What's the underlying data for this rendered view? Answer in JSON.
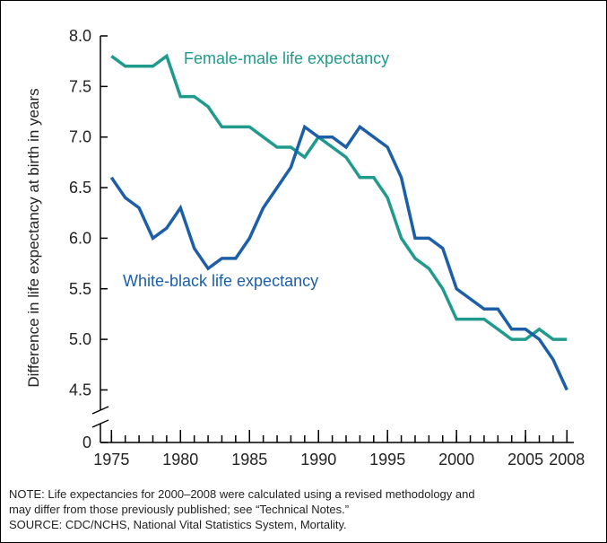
{
  "chart_data": {
    "type": "line",
    "y_label": "Difference in life expectancy at birth in years",
    "x": [
      1975,
      1976,
      1977,
      1978,
      1979,
      1980,
      1981,
      1982,
      1983,
      1984,
      1985,
      1986,
      1987,
      1988,
      1989,
      1990,
      1991,
      1992,
      1993,
      1994,
      1995,
      1996,
      1997,
      1998,
      1999,
      2000,
      2001,
      2002,
      2003,
      2004,
      2005,
      2006,
      2007,
      2008
    ],
    "series": [
      {
        "name": "Female-male life expectancy",
        "color": "#1f9a8c",
        "values": [
          7.8,
          7.7,
          7.7,
          7.7,
          7.8,
          7.4,
          7.4,
          7.3,
          7.1,
          7.1,
          7.1,
          7.0,
          6.9,
          6.9,
          6.8,
          7.0,
          6.9,
          6.8,
          6.6,
          6.6,
          6.4,
          6.0,
          5.8,
          5.7,
          5.5,
          5.2,
          5.2,
          5.2,
          5.1,
          5.0,
          5.0,
          5.1,
          5.0,
          5.0
        ]
      },
      {
        "name": "White-black life expectancy",
        "color": "#1c5ea8",
        "values": [
          6.6,
          6.4,
          6.3,
          6.0,
          6.1,
          6.3,
          5.9,
          5.7,
          5.8,
          5.8,
          6.0,
          6.3,
          6.5,
          6.7,
          7.1,
          7.0,
          7.0,
          6.9,
          7.1,
          7.0,
          6.9,
          6.6,
          6.0,
          6.0,
          5.9,
          5.5,
          5.4,
          5.3,
          5.3,
          5.1,
          5.1,
          5.0,
          4.8,
          4.5
        ]
      }
    ],
    "xlim": [
      1974.2,
      2008.5
    ],
    "xticks": [
      1975,
      1980,
      1985,
      1990,
      1995,
      2000,
      2005,
      2008
    ],
    "ylim": [
      0,
      8.0
    ],
    "axis_break": [
      0,
      4.3
    ],
    "yticks": [
      0,
      {
        "value": 4.5,
        "label": "4.5"
      },
      {
        "value": 5.0,
        "label": "5.0"
      },
      {
        "value": 5.5,
        "label": "5.5"
      },
      {
        "value": 6.0,
        "label": "6.0"
      },
      {
        "value": 6.5,
        "label": "6.5"
      },
      {
        "value": 7.0,
        "label": "7.0"
      },
      {
        "value": 7.5,
        "label": "7.5"
      },
      {
        "value": 8.0,
        "label": "8.0"
      }
    ],
    "notes": [
      "NOTE: Life expectancies for 2000–2008 were calculated using a revised methodology and",
      "may differ from those previously published; see “Technical Notes.”",
      "SOURCE: CDC/NCHS, National Vital Statistics System, Mortality."
    ]
  }
}
